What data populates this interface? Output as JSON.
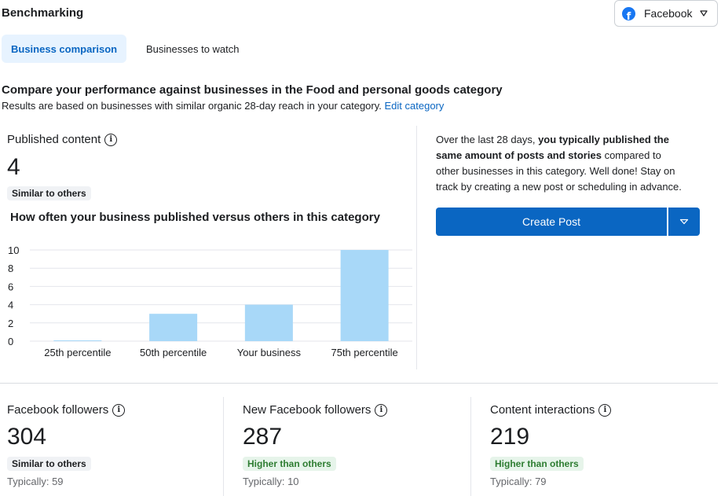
{
  "page": {
    "title": "Benchmarking"
  },
  "platform": {
    "label": "Facebook",
    "icon": "facebook-logo-icon"
  },
  "tabs": [
    {
      "label": "Business comparison",
      "active": true
    },
    {
      "label": "Businesses to watch",
      "active": false
    }
  ],
  "intro": {
    "heading": "Compare your performance against businesses in the Food and personal goods category",
    "subtext": "Results are based on businesses with similar organic 28-day reach in your category.",
    "edit_link": "Edit category"
  },
  "published": {
    "label": "Published content",
    "value": "4",
    "badge": "Similar to others",
    "chart_title": "How often your business published versus others in this category"
  },
  "chart_data": {
    "type": "bar",
    "categories": [
      "25th percentile",
      "50th percentile",
      "Your business",
      "75th percentile"
    ],
    "values": [
      0,
      3,
      4,
      10
    ],
    "yticks": [
      0,
      2,
      4,
      6,
      8,
      10
    ],
    "ylim": [
      0,
      10
    ],
    "grid": true,
    "bar_color": "#a8d8f8",
    "title": "",
    "xlabel": "",
    "ylabel": ""
  },
  "summary": {
    "prefix": "Over the last 28 days,",
    "highlight": "you typically published the same amount of posts and stories",
    "suffix": "compared to other businesses in this category. Well done! Stay on track by creating a new post or scheduling in advance."
  },
  "create_post": {
    "label": "Create Post"
  },
  "metrics": [
    {
      "label": "Facebook followers",
      "value": "304",
      "badge": "Similar to others",
      "badge_type": "neutral",
      "typical": "Typically: 59"
    },
    {
      "label": "New Facebook followers",
      "value": "287",
      "badge": "Higher than others",
      "badge_type": "positive",
      "typical": "Typically: 10"
    },
    {
      "label": "Content interactions",
      "value": "219",
      "badge": "Higher than others",
      "badge_type": "positive",
      "typical": "Typically: 79"
    }
  ],
  "colors": {
    "accent": "#0a66c2",
    "positive_bg": "#e6f4ea",
    "positive_text": "#2e7d32",
    "neutral_bg": "#f0f2f5"
  }
}
